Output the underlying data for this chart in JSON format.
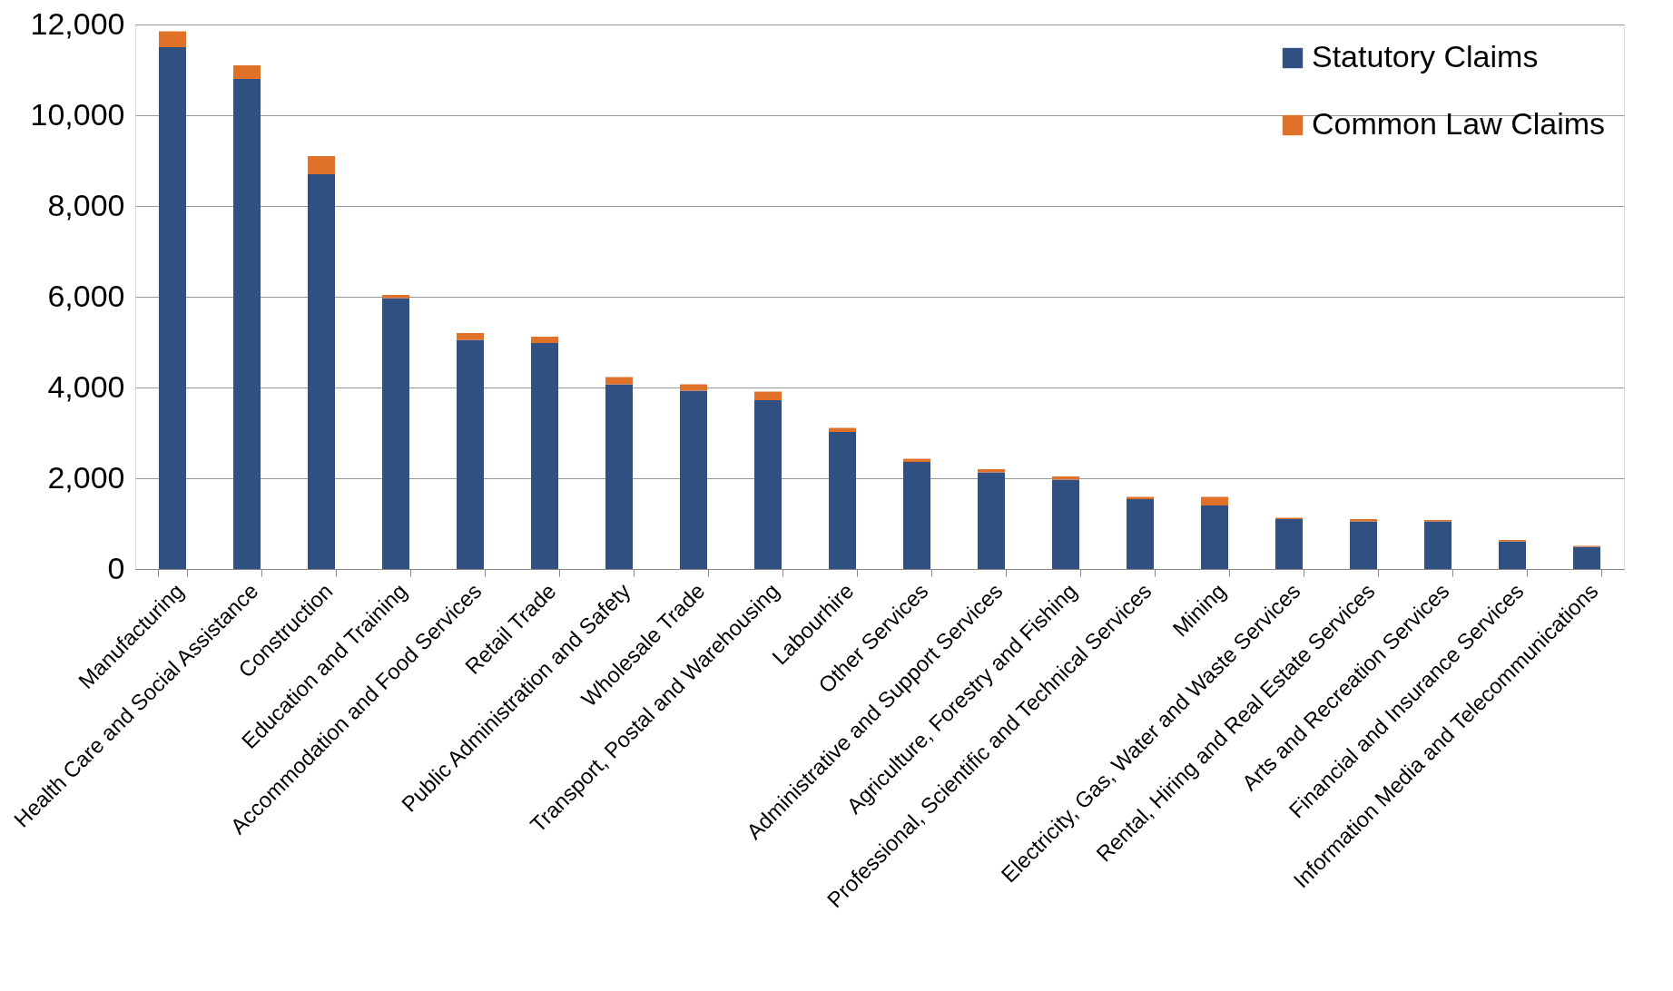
{
  "chart_data": {
    "type": "bar",
    "stacked": true,
    "categories": [
      "Manufacturing",
      "Health Care and Social Assistance",
      "Construction",
      "Education and Training",
      "Accommodation and Food Services",
      "Retail Trade",
      "Public Administration and Safety",
      "Wholesale Trade",
      "Transport, Postal and Warehousing",
      "Labourhire",
      "Other Services",
      "Administrative and Support Services",
      "Agriculture, Forestry and Fishing",
      "Professional, Scientific and Technical Services",
      "Mining",
      "Electricity, Gas, Water and Waste Services",
      "Rental, Hiring and Real Estate Services",
      "Arts and Recreation Services",
      "Financial and Insurance Services",
      "Information Media and Telecommunications"
    ],
    "series": [
      {
        "name": "Statutory Claims",
        "color": "#2f5081",
        "values": [
          11500,
          10800,
          8700,
          5970,
          5050,
          4980,
          4070,
          3930,
          3720,
          3020,
          2360,
          2130,
          1970,
          1540,
          1400,
          1100,
          1050,
          1050,
          610,
          490
        ]
      },
      {
        "name": "Common Law Claims",
        "color": "#e07128",
        "values": [
          350,
          300,
          400,
          70,
          150,
          140,
          160,
          140,
          190,
          90,
          70,
          70,
          70,
          50,
          190,
          30,
          50,
          30,
          30,
          20
        ]
      }
    ],
    "ylim": [
      0,
      12000
    ],
    "yticks": [
      0,
      {
        "value": 2000,
        "label": "2,000"
      },
      {
        "value": 4000,
        "label": "4,000"
      },
      {
        "value": 6000,
        "label": "6,000"
      },
      {
        "value": 8000,
        "label": "8,000"
      },
      {
        "value": 10000,
        "label": "10,000"
      },
      {
        "value": 12000,
        "label": "12,000"
      }
    ],
    "grid": "y",
    "legend": "top right"
  }
}
